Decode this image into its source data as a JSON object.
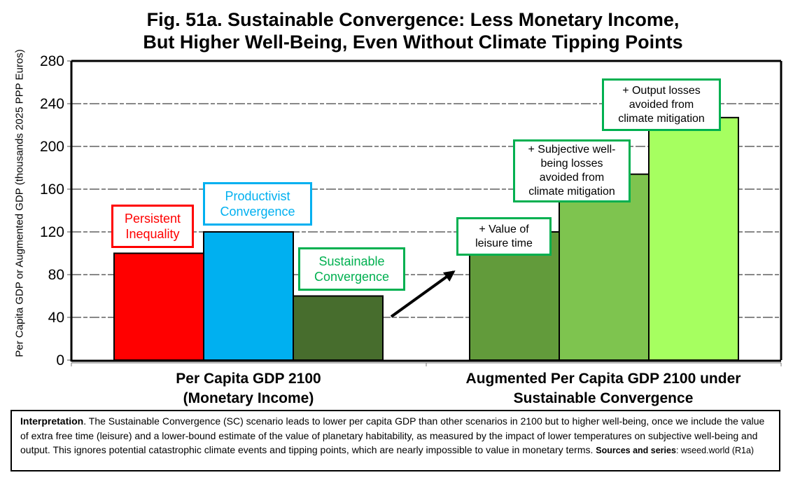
{
  "chart_data": {
    "type": "bar",
    "title": "Fig. 51a. Sustainable Convergence: Less Monetary Income, But Higher Well-Being, Even Without Climate Tipping Points",
    "title_lines": [
      "Fig. 51a. Sustainable Convergence: Less Monetary Income,",
      "But Higher Well-Being, Even Without Climate Tipping Points"
    ],
    "ylabel": "Per Capita GDP or Augmented GDP (thousands 2025 PPP Euros)",
    "xlabel": "",
    "ylim": [
      0,
      280
    ],
    "yticks": [
      0,
      40,
      80,
      120,
      160,
      200,
      240,
      280
    ],
    "ytick_labels": [
      "0",
      "40",
      "80",
      "120",
      "160",
      "200",
      "240",
      "280"
    ],
    "grid": true,
    "grid_style": "dashed",
    "categories": [
      {
        "label_lines": [
          "Per Capita GDP 2100",
          "(Monetary Income)"
        ]
      },
      {
        "label_lines": [
          "Augmented Per Capita GDP 2100 under",
          "Sustainable Convergence"
        ]
      }
    ],
    "series": [
      {
        "name": "Persistent Inequality",
        "label_lines": [
          "Persistent",
          "Inequality"
        ],
        "group": 0,
        "value": 100,
        "color": "#ff0000",
        "label_color": "#ff0000"
      },
      {
        "name": "Productivist Convergence",
        "label_lines": [
          "Productivist",
          "Convergence"
        ],
        "group": 0,
        "value": 120,
        "color": "#00b0f0",
        "label_color": "#00b0f0"
      },
      {
        "name": "Sustainable Convergence",
        "label_lines": [
          "Sustainable",
          "Convergence"
        ],
        "group": 0,
        "value": 60,
        "color": "#476d2d",
        "label_color": "#00b050"
      },
      {
        "name": "+ Value of leisure time",
        "label_lines": [
          "+ Value of",
          "leisure time"
        ],
        "group": 1,
        "value": 120,
        "color": "#629b3b",
        "label_color": "#000000"
      },
      {
        "name": "+ Subjective well-being losses avoided from climate mitigation",
        "label_lines": [
          "+ Subjective well-",
          "being losses",
          "avoided from",
          "climate mitigation"
        ],
        "group": 1,
        "value": 174,
        "color": "#7ec44f",
        "label_color": "#000000"
      },
      {
        "name": "+ Output losses avoided from climate mitigation",
        "label_lines": [
          "+ Output losses",
          "avoided from",
          "climate mitigation"
        ],
        "group": 1,
        "value": 227,
        "color": "#a6ff60",
        "label_color": "#000000"
      }
    ],
    "annotations": [
      {
        "type": "arrow",
        "from": "Sustainable Convergence",
        "to": "+ Value of leisure time"
      }
    ],
    "annotation_box_border": "#00b050"
  },
  "interpretation": {
    "lead": "Interpretation",
    "body": ". The Sustainable Convergence (SC) scenario leads to lower per capita GDP than other scenarios in 2100 but to higher well-being, once we include the value of extra free time (leisure) and a lower-bound estimate of the value of planetary habitability, as measured by the impact of lower temperatures on subjective well-being and output. This ignores potential catastrophic climate events and tipping points, which are nearly impossible to value in monetary terms. ",
    "sources_label": "Sources and series",
    "sources_value": ": wseed.world (R1a)"
  }
}
